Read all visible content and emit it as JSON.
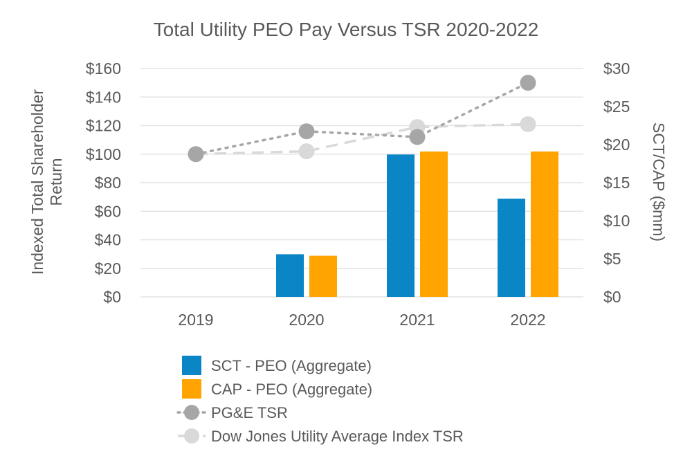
{
  "chart_data": {
    "type": "bar",
    "title": "Total Utility PEO Pay Versus TSR 2020-2022",
    "categories": [
      "2019",
      "2020",
      "2021",
      "2022"
    ],
    "y_left": {
      "label_lines": [
        "Indexed Total Shareholder",
        "Return"
      ],
      "range": [
        0,
        160
      ],
      "ticks": [
        0,
        20,
        40,
        60,
        80,
        100,
        120,
        140,
        160
      ],
      "tick_labels": [
        "$0",
        "$20",
        "$40",
        "$60",
        "$80",
        "$100",
        "$120",
        "$140",
        "$160"
      ]
    },
    "y_right": {
      "label": "SCT/CAP ($mm)",
      "range": [
        0,
        30
      ],
      "ticks": [
        0,
        5,
        10,
        15,
        20,
        25,
        30
      ],
      "tick_labels": [
        "$0",
        "$5",
        "$10",
        "$15",
        "$20",
        "$25",
        "$30"
      ]
    },
    "bar_series": [
      {
        "name": "SCT - PEO (Aggregate)",
        "axis": "right",
        "color": "#0a85c6",
        "values": [
          null,
          5.6,
          18.7,
          12.9
        ]
      },
      {
        "name": "CAP - PEO (Aggregate)",
        "axis": "right",
        "color": "#ffa400",
        "values": [
          null,
          5.4,
          19.1,
          19.1
        ]
      }
    ],
    "line_series": [
      {
        "name": "PG&E TSR",
        "axis": "left",
        "color": "#a6a6a6",
        "style": "dotted",
        "values": [
          100,
          116,
          112,
          150
        ]
      },
      {
        "name": "Dow Jones Utility Average Index TSR",
        "axis": "left",
        "color": "#d9d9d9",
        "style": "dashed",
        "values": [
          100,
          102,
          119,
          121
        ]
      }
    ],
    "legend_position": "bottom"
  }
}
